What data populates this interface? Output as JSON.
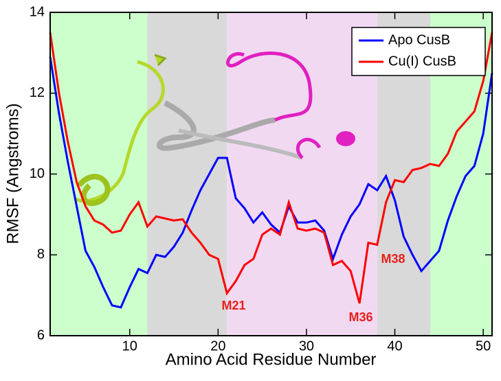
{
  "chart_data": {
    "type": "line",
    "x_label": "Amino Acid Residue Number",
    "y_label": "RMSF (Angstroms)",
    "x": [
      1,
      2,
      3,
      4,
      5,
      6,
      7,
      8,
      9,
      10,
      11,
      12,
      13,
      14,
      15,
      16,
      17,
      18,
      19,
      20,
      21,
      22,
      23,
      24,
      25,
      26,
      27,
      28,
      29,
      30,
      31,
      32,
      33,
      34,
      35,
      36,
      37,
      38,
      39,
      40,
      41,
      42,
      43,
      44,
      45,
      46,
      47,
      48,
      49,
      50,
      51
    ],
    "series": [
      {
        "name": "Apo CusB",
        "color": "#0000ff",
        "values": [
          12.9,
          11.5,
          10.3,
          9.2,
          8.1,
          7.7,
          7.2,
          6.75,
          6.7,
          7.2,
          7.65,
          7.55,
          8.0,
          7.95,
          8.2,
          8.55,
          9.1,
          9.6,
          10.0,
          10.4,
          10.4,
          9.4,
          9.15,
          8.8,
          9.05,
          8.75,
          8.55,
          9.2,
          8.8,
          8.8,
          8.85,
          8.6,
          7.9,
          8.5,
          8.95,
          9.25,
          9.75,
          9.6,
          9.95,
          9.35,
          8.45,
          8.0,
          7.6,
          7.85,
          8.1,
          8.85,
          9.45,
          9.95,
          10.2,
          11.0,
          12.5
        ]
      },
      {
        "name": "Cu(I) CusB",
        "color": "#ff0000",
        "values": [
          13.5,
          12.0,
          10.8,
          9.8,
          9.2,
          8.85,
          8.75,
          8.55,
          8.6,
          9.0,
          9.3,
          8.7,
          8.95,
          8.9,
          8.85,
          8.88,
          8.55,
          8.3,
          8.0,
          7.9,
          7.05,
          7.35,
          7.75,
          7.9,
          8.5,
          8.65,
          8.5,
          9.3,
          8.65,
          8.6,
          8.65,
          8.55,
          7.75,
          7.85,
          7.6,
          6.8,
          8.3,
          8.25,
          9.3,
          9.85,
          9.8,
          10.1,
          10.15,
          10.25,
          10.2,
          10.5,
          11.05,
          11.3,
          11.55,
          12.3,
          13.5
        ]
      }
    ],
    "annotations": [
      "M21",
      "M36",
      "M38"
    ],
    "regions": [
      {
        "from": 1,
        "to": 12,
        "color": "#ccffcc"
      },
      {
        "from": 12,
        "to": 21,
        "color": "#d9d9d9"
      },
      {
        "from": 21,
        "to": 38,
        "color": "#f2d9f2"
      },
      {
        "from": 38,
        "to": 44,
        "color": "#d9d9d9"
      },
      {
        "from": 44,
        "to": 51,
        "color": "#ccffcc"
      }
    ],
    "xlim": [
      1,
      51
    ],
    "ylim": [
      6,
      14
    ],
    "xticks": [
      10,
      20,
      30,
      40,
      50
    ],
    "yticks": [
      6,
      8,
      10,
      12,
      14
    ],
    "legend": "upper right"
  }
}
